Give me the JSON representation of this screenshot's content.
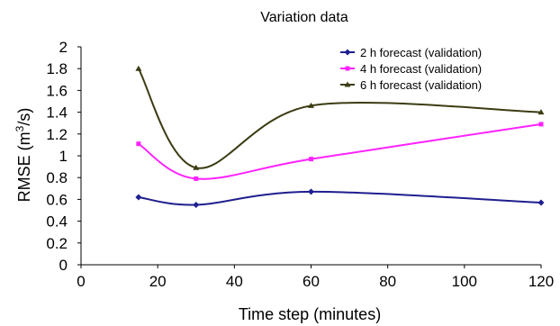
{
  "chart_data": {
    "type": "line",
    "title": "Variation data",
    "xlabel": "Time step (minutes)",
    "ylabel_main": "RMSE (m",
    "ylabel_sup": "3",
    "ylabel_tail": "/s)",
    "xlim": [
      0,
      120
    ],
    "ylim": [
      0,
      2
    ],
    "xticks": [
      0,
      20,
      40,
      60,
      80,
      100,
      120
    ],
    "yticks": [
      0,
      0.2,
      0.4,
      0.6,
      0.8,
      1,
      1.2,
      1.4,
      1.6,
      1.8,
      2
    ],
    "x": [
      15,
      30,
      60,
      120
    ],
    "series": [
      {
        "name": "2 h forecast (validation)",
        "color": "#1f1f8f",
        "marker": "diamond",
        "values": [
          0.62,
          0.55,
          0.67,
          0.57
        ]
      },
      {
        "name": "4 h forecast (validation)",
        "color": "#ff22ff",
        "marker": "square",
        "values": [
          1.11,
          0.79,
          0.97,
          1.29
        ]
      },
      {
        "name": "6 h forecast (validation)",
        "color": "#3c3c14",
        "marker": "triangle",
        "values": [
          1.8,
          0.89,
          1.46,
          1.4
        ]
      }
    ],
    "grid": false,
    "legend_position": "top-right"
  }
}
